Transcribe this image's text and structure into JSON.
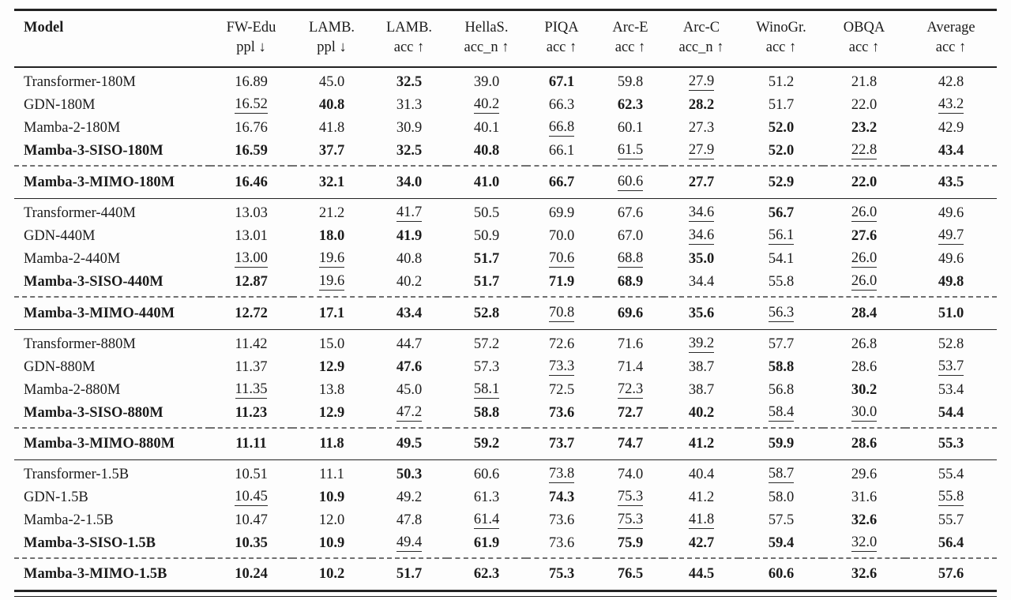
{
  "table": {
    "columns": [
      {
        "id": "model",
        "line1": "Model",
        "line2": ""
      },
      {
        "id": "fw-edu",
        "line1": "FW-Edu",
        "line2": "ppl ↓"
      },
      {
        "id": "lamb-ppl",
        "line1": "LAMB.",
        "line2": "ppl ↓"
      },
      {
        "id": "lamb-acc",
        "line1": "LAMB.",
        "line2": "acc ↑"
      },
      {
        "id": "hellas",
        "line1": "HellaS.",
        "line2": "acc_n ↑"
      },
      {
        "id": "piqa",
        "line1": "PIQA",
        "line2": "acc ↑"
      },
      {
        "id": "arc-e",
        "line1": "Arc-E",
        "line2": "acc ↑"
      },
      {
        "id": "arc-c",
        "line1": "Arc-C",
        "line2": "acc_n ↑"
      },
      {
        "id": "winogr",
        "line1": "WinoGr.",
        "line2": "acc ↑"
      },
      {
        "id": "obqa",
        "line1": "OBQA",
        "line2": "acc ↑"
      },
      {
        "id": "average",
        "line1": "Average",
        "line2": "acc ↑"
      }
    ],
    "style_legend": {
      "b": "bold",
      "u": "underline",
      "": "plain"
    },
    "groups": [
      {
        "rows": [
          {
            "model": "Transformer-180M",
            "bold_model": false,
            "cells": [
              [
                "16.89",
                ""
              ],
              [
                "45.0",
                ""
              ],
              [
                "32.5",
                "b"
              ],
              [
                "39.0",
                ""
              ],
              [
                "67.1",
                "b"
              ],
              [
                "59.8",
                ""
              ],
              [
                "27.9",
                "u"
              ],
              [
                "51.2",
                ""
              ],
              [
                "21.8",
                ""
              ],
              [
                "42.8",
                ""
              ]
            ]
          },
          {
            "model": "GDN-180M",
            "bold_model": false,
            "cells": [
              [
                "16.52",
                "u"
              ],
              [
                "40.8",
                "b"
              ],
              [
                "31.3",
                ""
              ],
              [
                "40.2",
                "u"
              ],
              [
                "66.3",
                ""
              ],
              [
                "62.3",
                "b"
              ],
              [
                "28.2",
                "b"
              ],
              [
                "51.7",
                ""
              ],
              [
                "22.0",
                ""
              ],
              [
                "43.2",
                "u"
              ]
            ]
          },
          {
            "model": "Mamba-2-180M",
            "bold_model": false,
            "cells": [
              [
                "16.76",
                ""
              ],
              [
                "41.8",
                ""
              ],
              [
                "30.9",
                ""
              ],
              [
                "40.1",
                ""
              ],
              [
                "66.8",
                "u"
              ],
              [
                "60.1",
                ""
              ],
              [
                "27.3",
                ""
              ],
              [
                "52.0",
                "b"
              ],
              [
                "23.2",
                "b"
              ],
              [
                "42.9",
                ""
              ]
            ]
          },
          {
            "model": "Mamba-3-SISO-180M",
            "bold_model": true,
            "cells": [
              [
                "16.59",
                "b"
              ],
              [
                "37.7",
                "b"
              ],
              [
                "32.5",
                "b"
              ],
              [
                "40.8",
                "b"
              ],
              [
                "66.1",
                ""
              ],
              [
                "61.5",
                "u"
              ],
              [
                "27.9",
                "u"
              ],
              [
                "52.0",
                "b"
              ],
              [
                "22.8",
                "u"
              ],
              [
                "43.4",
                "b"
              ]
            ]
          }
        ],
        "mimo": {
          "model": "Mamba-3-MIMO-180M",
          "bold_model": true,
          "cells": [
            [
              "16.46",
              "b"
            ],
            [
              "32.1",
              "b"
            ],
            [
              "34.0",
              "b"
            ],
            [
              "41.0",
              "b"
            ],
            [
              "66.7",
              "b"
            ],
            [
              "60.6",
              "u"
            ],
            [
              "27.7",
              "b"
            ],
            [
              "52.9",
              "b"
            ],
            [
              "22.0",
              "b"
            ],
            [
              "43.5",
              "b"
            ]
          ]
        }
      },
      {
        "rows": [
          {
            "model": "Transformer-440M",
            "bold_model": false,
            "cells": [
              [
                "13.03",
                ""
              ],
              [
                "21.2",
                ""
              ],
              [
                "41.7",
                "u"
              ],
              [
                "50.5",
                ""
              ],
              [
                "69.9",
                ""
              ],
              [
                "67.6",
                ""
              ],
              [
                "34.6",
                "u"
              ],
              [
                "56.7",
                "b"
              ],
              [
                "26.0",
                "u"
              ],
              [
                "49.6",
                ""
              ]
            ]
          },
          {
            "model": "GDN-440M",
            "bold_model": false,
            "cells": [
              [
                "13.01",
                ""
              ],
              [
                "18.0",
                "b"
              ],
              [
                "41.9",
                "b"
              ],
              [
                "50.9",
                ""
              ],
              [
                "70.0",
                ""
              ],
              [
                "67.0",
                ""
              ],
              [
                "34.6",
                "u"
              ],
              [
                "56.1",
                "u"
              ],
              [
                "27.6",
                "b"
              ],
              [
                "49.7",
                "u"
              ]
            ]
          },
          {
            "model": "Mamba-2-440M",
            "bold_model": false,
            "cells": [
              [
                "13.00",
                "u"
              ],
              [
                "19.6",
                "u"
              ],
              [
                "40.8",
                ""
              ],
              [
                "51.7",
                "b"
              ],
              [
                "70.6",
                "u"
              ],
              [
                "68.8",
                "u"
              ],
              [
                "35.0",
                "b"
              ],
              [
                "54.1",
                ""
              ],
              [
                "26.0",
                "u"
              ],
              [
                "49.6",
                ""
              ]
            ]
          },
          {
            "model": "Mamba-3-SISO-440M",
            "bold_model": true,
            "cells": [
              [
                "12.87",
                "b"
              ],
              [
                "19.6",
                "u"
              ],
              [
                "40.2",
                ""
              ],
              [
                "51.7",
                "b"
              ],
              [
                "71.9",
                "b"
              ],
              [
                "68.9",
                "b"
              ],
              [
                "34.4",
                ""
              ],
              [
                "55.8",
                ""
              ],
              [
                "26.0",
                "u"
              ],
              [
                "49.8",
                "b"
              ]
            ]
          }
        ],
        "mimo": {
          "model": "Mamba-3-MIMO-440M",
          "bold_model": true,
          "cells": [
            [
              "12.72",
              "b"
            ],
            [
              "17.1",
              "b"
            ],
            [
              "43.4",
              "b"
            ],
            [
              "52.8",
              "b"
            ],
            [
              "70.8",
              "u"
            ],
            [
              "69.6",
              "b"
            ],
            [
              "35.6",
              "b"
            ],
            [
              "56.3",
              "u"
            ],
            [
              "28.4",
              "b"
            ],
            [
              "51.0",
              "b"
            ]
          ]
        }
      },
      {
        "rows": [
          {
            "model": "Transformer-880M",
            "bold_model": false,
            "cells": [
              [
                "11.42",
                ""
              ],
              [
                "15.0",
                ""
              ],
              [
                "44.7",
                ""
              ],
              [
                "57.2",
                ""
              ],
              [
                "72.6",
                ""
              ],
              [
                "71.6",
                ""
              ],
              [
                "39.2",
                "u"
              ],
              [
                "57.7",
                ""
              ],
              [
                "26.8",
                ""
              ],
              [
                "52.8",
                ""
              ]
            ]
          },
          {
            "model": "GDN-880M",
            "bold_model": false,
            "cells": [
              [
                "11.37",
                ""
              ],
              [
                "12.9",
                "b"
              ],
              [
                "47.6",
                "b"
              ],
              [
                "57.3",
                ""
              ],
              [
                "73.3",
                "u"
              ],
              [
                "71.4",
                ""
              ],
              [
                "38.7",
                ""
              ],
              [
                "58.8",
                "b"
              ],
              [
                "28.6",
                ""
              ],
              [
                "53.7",
                "u"
              ]
            ]
          },
          {
            "model": "Mamba-2-880M",
            "bold_model": false,
            "cells": [
              [
                "11.35",
                "u"
              ],
              [
                "13.8",
                ""
              ],
              [
                "45.0",
                ""
              ],
              [
                "58.1",
                "u"
              ],
              [
                "72.5",
                ""
              ],
              [
                "72.3",
                "u"
              ],
              [
                "38.7",
                ""
              ],
              [
                "56.8",
                ""
              ],
              [
                "30.2",
                "b"
              ],
              [
                "53.4",
                ""
              ]
            ]
          },
          {
            "model": "Mamba-3-SISO-880M",
            "bold_model": true,
            "cells": [
              [
                "11.23",
                "b"
              ],
              [
                "12.9",
                "b"
              ],
              [
                "47.2",
                "u"
              ],
              [
                "58.8",
                "b"
              ],
              [
                "73.6",
                "b"
              ],
              [
                "72.7",
                "b"
              ],
              [
                "40.2",
                "b"
              ],
              [
                "58.4",
                "u"
              ],
              [
                "30.0",
                "u"
              ],
              [
                "54.4",
                "b"
              ]
            ]
          }
        ],
        "mimo": {
          "model": "Mamba-3-MIMO-880M",
          "bold_model": true,
          "cells": [
            [
              "11.11",
              "b"
            ],
            [
              "11.8",
              "b"
            ],
            [
              "49.5",
              "b"
            ],
            [
              "59.2",
              "b"
            ],
            [
              "73.7",
              "b"
            ],
            [
              "74.7",
              "b"
            ],
            [
              "41.2",
              "b"
            ],
            [
              "59.9",
              "b"
            ],
            [
              "28.6",
              "b"
            ],
            [
              "55.3",
              "b"
            ]
          ]
        }
      },
      {
        "rows": [
          {
            "model": "Transformer-1.5B",
            "bold_model": false,
            "cells": [
              [
                "10.51",
                ""
              ],
              [
                "11.1",
                ""
              ],
              [
                "50.3",
                "b"
              ],
              [
                "60.6",
                ""
              ],
              [
                "73.8",
                "u"
              ],
              [
                "74.0",
                ""
              ],
              [
                "40.4",
                ""
              ],
              [
                "58.7",
                "u"
              ],
              [
                "29.6",
                ""
              ],
              [
                "55.4",
                ""
              ]
            ]
          },
          {
            "model": "GDN-1.5B",
            "bold_model": false,
            "cells": [
              [
                "10.45",
                "u"
              ],
              [
                "10.9",
                "b"
              ],
              [
                "49.2",
                ""
              ],
              [
                "61.3",
                ""
              ],
              [
                "74.3",
                "b"
              ],
              [
                "75.3",
                "u"
              ],
              [
                "41.2",
                ""
              ],
              [
                "58.0",
                ""
              ],
              [
                "31.6",
                ""
              ],
              [
                "55.8",
                "u"
              ]
            ]
          },
          {
            "model": "Mamba-2-1.5B",
            "bold_model": false,
            "cells": [
              [
                "10.47",
                ""
              ],
              [
                "12.0",
                ""
              ],
              [
                "47.8",
                ""
              ],
              [
                "61.4",
                "u"
              ],
              [
                "73.6",
                ""
              ],
              [
                "75.3",
                "u"
              ],
              [
                "41.8",
                "u"
              ],
              [
                "57.5",
                ""
              ],
              [
                "32.6",
                "b"
              ],
              [
                "55.7",
                ""
              ]
            ]
          },
          {
            "model": "Mamba-3-SISO-1.5B",
            "bold_model": true,
            "cells": [
              [
                "10.35",
                "b"
              ],
              [
                "10.9",
                "b"
              ],
              [
                "49.4",
                "u"
              ],
              [
                "61.9",
                "b"
              ],
              [
                "73.6",
                ""
              ],
              [
                "75.9",
                "b"
              ],
              [
                "42.7",
                "b"
              ],
              [
                "59.4",
                "b"
              ],
              [
                "32.0",
                "u"
              ],
              [
                "56.4",
                "b"
              ]
            ]
          }
        ],
        "mimo": {
          "model": "Mamba-3-MIMO-1.5B",
          "bold_model": true,
          "cells": [
            [
              "10.24",
              "b"
            ],
            [
              "10.2",
              "b"
            ],
            [
              "51.7",
              "b"
            ],
            [
              "62.3",
              "b"
            ],
            [
              "75.3",
              "b"
            ],
            [
              "76.5",
              "b"
            ],
            [
              "44.5",
              "b"
            ],
            [
              "60.6",
              "b"
            ],
            [
              "32.6",
              "b"
            ],
            [
              "57.6",
              "b"
            ]
          ]
        }
      }
    ]
  }
}
